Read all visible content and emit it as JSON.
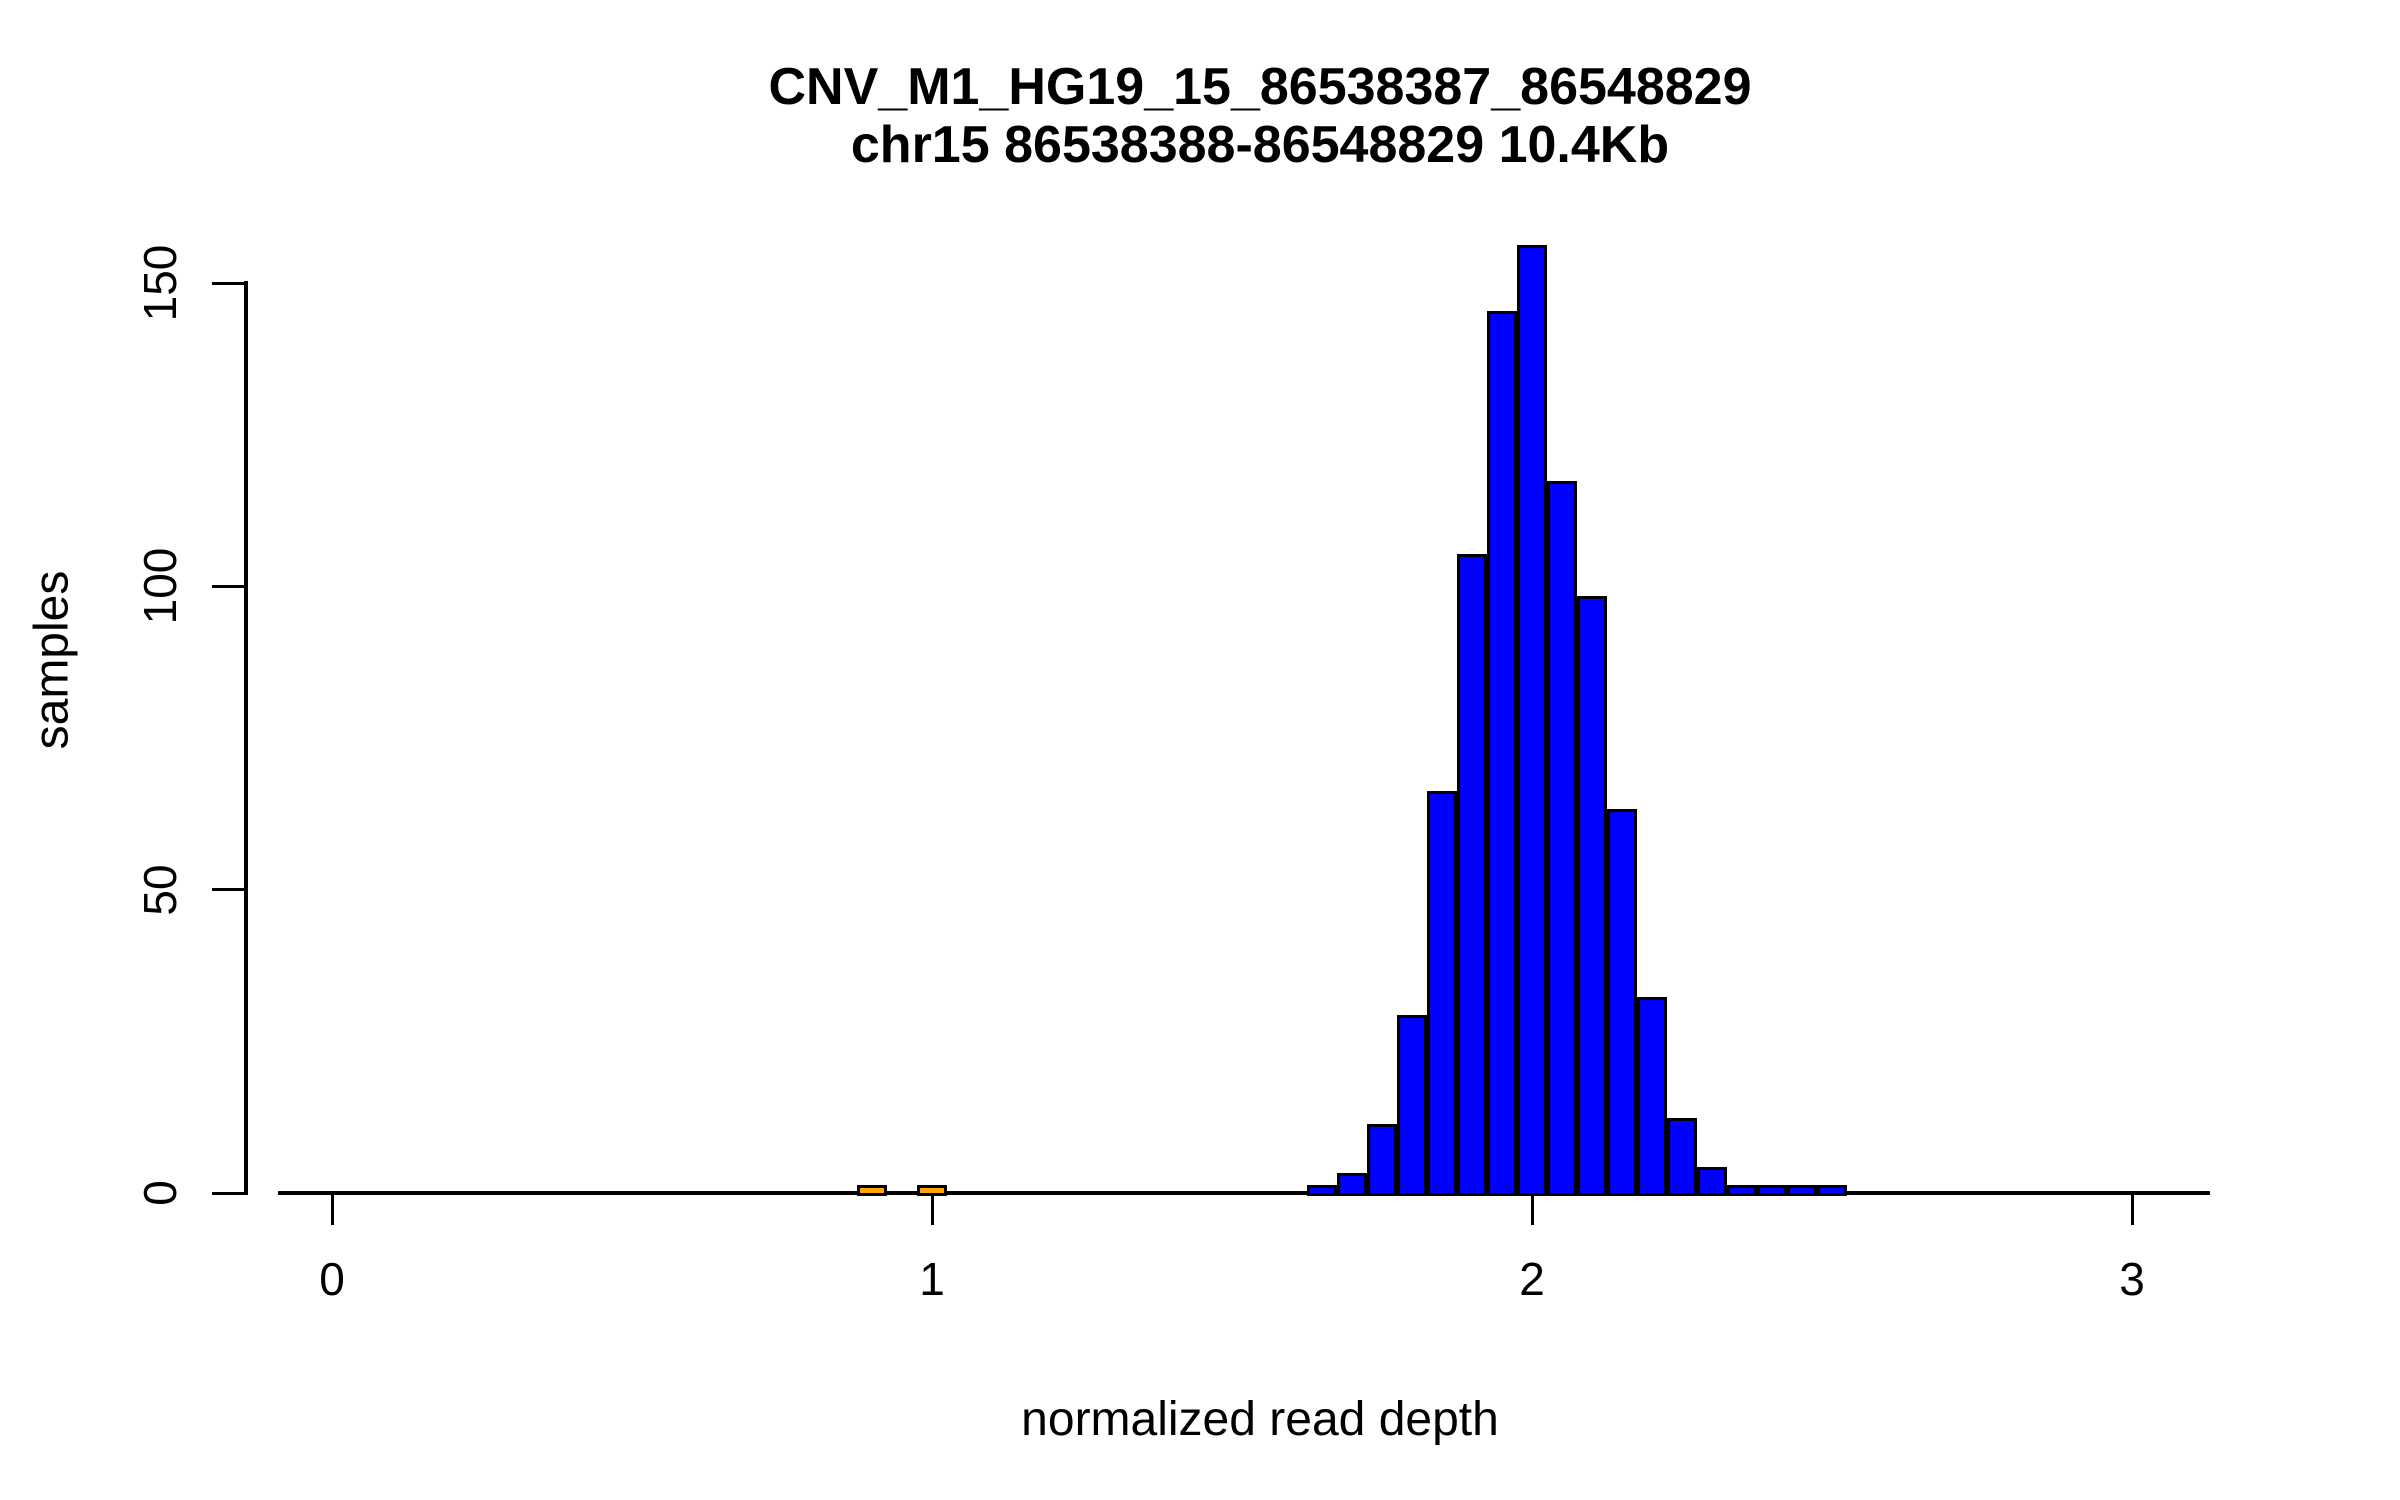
{
  "chart_data": {
    "type": "bar",
    "subtype": "histogram",
    "title": "CNV_M1_HG19_15_86538387_86548829",
    "subtitle": "chr15 86538388-86548829 10.4Kb",
    "xlabel": "normalized read depth",
    "ylabel": "samples",
    "x_ticks": [
      0,
      1,
      2,
      3
    ],
    "y_ticks": [
      0,
      50,
      100,
      150
    ],
    "xlim": [
      -0.09,
      3.13
    ],
    "ylim": [
      0,
      150
    ],
    "grid": "off",
    "legend": "none",
    "bin_width": 0.05,
    "bars": [
      {
        "center": 0.9,
        "count": 1,
        "color": "#FFA500"
      },
      {
        "center": 1.0,
        "count": 1,
        "color": "#FFA500"
      },
      {
        "center": 1.65,
        "count": 1,
        "color": "#0000FF"
      },
      {
        "center": 1.7,
        "count": 3,
        "color": "#0000FF"
      },
      {
        "center": 1.75,
        "count": 11,
        "color": "#0000FF"
      },
      {
        "center": 1.8,
        "count": 29,
        "color": "#0000FF"
      },
      {
        "center": 1.85,
        "count": 66,
        "color": "#0000FF"
      },
      {
        "center": 1.9,
        "count": 105,
        "color": "#0000FF"
      },
      {
        "center": 1.95,
        "count": 145,
        "color": "#0000FF"
      },
      {
        "center": 2.0,
        "count": 156,
        "color": "#0000FF"
      },
      {
        "center": 2.05,
        "count": 117,
        "color": "#0000FF"
      },
      {
        "center": 2.1,
        "count": 98,
        "color": "#0000FF"
      },
      {
        "center": 2.15,
        "count": 63,
        "color": "#0000FF"
      },
      {
        "center": 2.2,
        "count": 32,
        "color": "#0000FF"
      },
      {
        "center": 2.25,
        "count": 12,
        "color": "#0000FF"
      },
      {
        "center": 2.3,
        "count": 4,
        "color": "#0000FF"
      },
      {
        "center": 2.35,
        "count": 1,
        "color": "#0000FF"
      },
      {
        "center": 2.4,
        "count": 1,
        "color": "#0000FF"
      },
      {
        "center": 2.45,
        "count": 1,
        "color": "#0000FF"
      },
      {
        "center": 2.5,
        "count": 1,
        "color": "#0000FF"
      }
    ],
    "colors": {
      "bar_main": "#0000FF",
      "bar_highlight": "#FFA500",
      "border": "#000000",
      "background": "#FFFFFF"
    }
  }
}
